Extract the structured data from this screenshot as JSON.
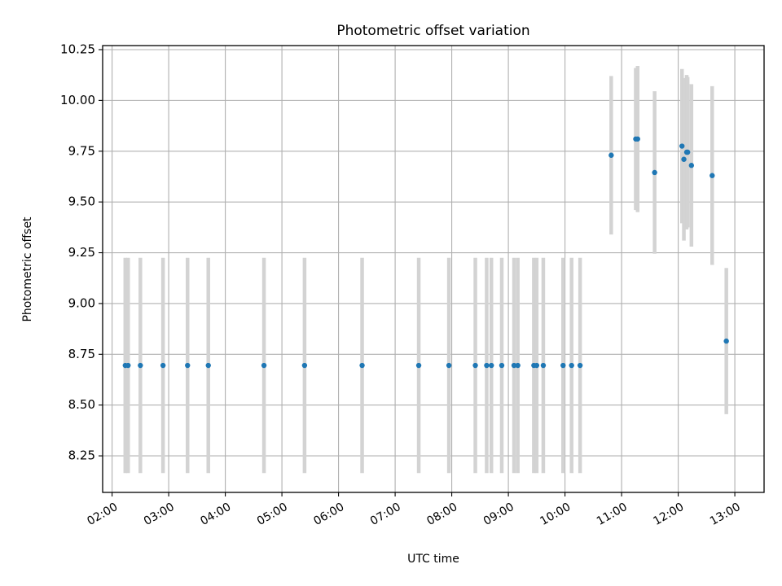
{
  "chart_data": {
    "type": "scatter",
    "title": "Photometric offset variation",
    "xlabel": "UTC time",
    "ylabel": "Photometric offset",
    "x_unit": "hours UTC",
    "xlim": [
      "01:50",
      "13:31"
    ],
    "ylim": [
      8.07,
      10.27
    ],
    "grid": true,
    "x_ticks": [
      "02:00",
      "03:00",
      "04:00",
      "05:00",
      "06:00",
      "07:00",
      "08:00",
      "09:00",
      "10:00",
      "11:00",
      "12:00",
      "13:00"
    ],
    "y_ticks": [
      "8.25",
      "8.50",
      "8.75",
      "9.00",
      "9.25",
      "9.50",
      "9.75",
      "10.00",
      "10.25"
    ],
    "point_color": "#1f77b4",
    "errorbar_color": "#d3d3d3",
    "points": [
      {
        "time": "02:14",
        "y": 8.695,
        "err": 0.53
      },
      {
        "time": "02:17",
        "y": 8.695,
        "err": 0.53
      },
      {
        "time": "02:30",
        "y": 8.695,
        "err": 0.53
      },
      {
        "time": "02:54",
        "y": 8.695,
        "err": 0.53
      },
      {
        "time": "03:20",
        "y": 8.695,
        "err": 0.53
      },
      {
        "time": "03:42",
        "y": 8.695,
        "err": 0.53
      },
      {
        "time": "04:41",
        "y": 8.695,
        "err": 0.53
      },
      {
        "time": "05:24",
        "y": 8.695,
        "err": 0.53
      },
      {
        "time": "06:25",
        "y": 8.695,
        "err": 0.53
      },
      {
        "time": "07:25",
        "y": 8.695,
        "err": 0.53
      },
      {
        "time": "07:57",
        "y": 8.695,
        "err": 0.53
      },
      {
        "time": "08:25",
        "y": 8.695,
        "err": 0.53
      },
      {
        "time": "08:37",
        "y": 8.695,
        "err": 0.53
      },
      {
        "time": "08:42",
        "y": 8.695,
        "err": 0.53
      },
      {
        "time": "08:53",
        "y": 8.695,
        "err": 0.53
      },
      {
        "time": "09:06",
        "y": 8.695,
        "err": 0.53
      },
      {
        "time": "09:10",
        "y": 8.695,
        "err": 0.53
      },
      {
        "time": "09:27",
        "y": 8.695,
        "err": 0.53
      },
      {
        "time": "09:30",
        "y": 8.695,
        "err": 0.53
      },
      {
        "time": "09:37",
        "y": 8.695,
        "err": 0.53
      },
      {
        "time": "09:58",
        "y": 8.695,
        "err": 0.53
      },
      {
        "time": "10:07",
        "y": 8.695,
        "err": 0.53
      },
      {
        "time": "10:16",
        "y": 8.695,
        "err": 0.53
      },
      {
        "time": "10:49",
        "y": 9.73,
        "err": 0.39
      },
      {
        "time": "11:15",
        "y": 9.81,
        "err": 0.35
      },
      {
        "time": "11:17",
        "y": 9.81,
        "err": 0.36
      },
      {
        "time": "11:35",
        "y": 9.645,
        "err": 0.4
      },
      {
        "time": "12:04",
        "y": 9.775,
        "err": 0.38
      },
      {
        "time": "12:06",
        "y": 9.71,
        "err": 0.4
      },
      {
        "time": "12:09",
        "y": 9.745,
        "err": 0.38
      },
      {
        "time": "12:10",
        "y": 9.745,
        "err": 0.37
      },
      {
        "time": "12:14",
        "y": 9.68,
        "err": 0.4
      },
      {
        "time": "12:36",
        "y": 9.63,
        "err": 0.44
      },
      {
        "time": "12:51",
        "y": 8.815,
        "err": 0.36
      }
    ]
  }
}
